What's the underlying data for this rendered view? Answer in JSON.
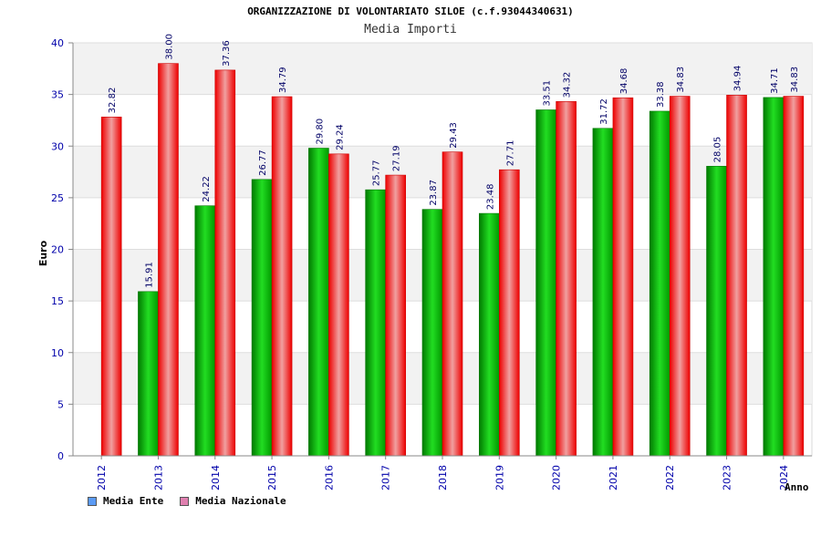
{
  "chart_data": {
    "type": "bar",
    "title": "ORGANIZZAZIONE DI VOLONTARIATO SILOE (c.f.93044340631)",
    "subtitle": "Media Importi",
    "xlabel": "Anno",
    "ylabel": "Euro",
    "ylim": [
      0,
      40
    ],
    "yticks": [
      0,
      5,
      10,
      15,
      20,
      25,
      30,
      35,
      40
    ],
    "grid": true,
    "legend_position": "bottom-left",
    "categories": [
      "2012",
      "2013",
      "2014",
      "2015",
      "2016",
      "2017",
      "2018",
      "2019",
      "2020",
      "2021",
      "2022",
      "2023",
      "2024"
    ],
    "series": [
      {
        "name": "Media Ente",
        "color": "#00bb00",
        "legend_color": "#5b9bf5",
        "values": [
          null,
          15.91,
          24.22,
          26.77,
          29.8,
          25.77,
          23.87,
          23.48,
          33.51,
          31.72,
          33.38,
          28.05,
          34.71
        ],
        "labels": [
          "",
          "15.91",
          "24.22",
          "26.77",
          "29.80",
          "25.77",
          "23.87",
          "23.48",
          "33.51",
          "31.72",
          "33.38",
          "28.05",
          "34.71"
        ]
      },
      {
        "name": "Media Nazionale",
        "color": "#ee1111",
        "legend_color": "#e080b0",
        "values": [
          32.82,
          38.0,
          37.36,
          34.79,
          29.24,
          27.19,
          29.43,
          27.71,
          34.32,
          34.68,
          34.83,
          34.94,
          34.83
        ],
        "labels": [
          "32.82",
          "38.00",
          "37.36",
          "34.79",
          "29.24",
          "27.19",
          "29.43",
          "27.71",
          "34.32",
          "34.68",
          "34.83",
          "34.94",
          "34.83"
        ]
      }
    ]
  }
}
